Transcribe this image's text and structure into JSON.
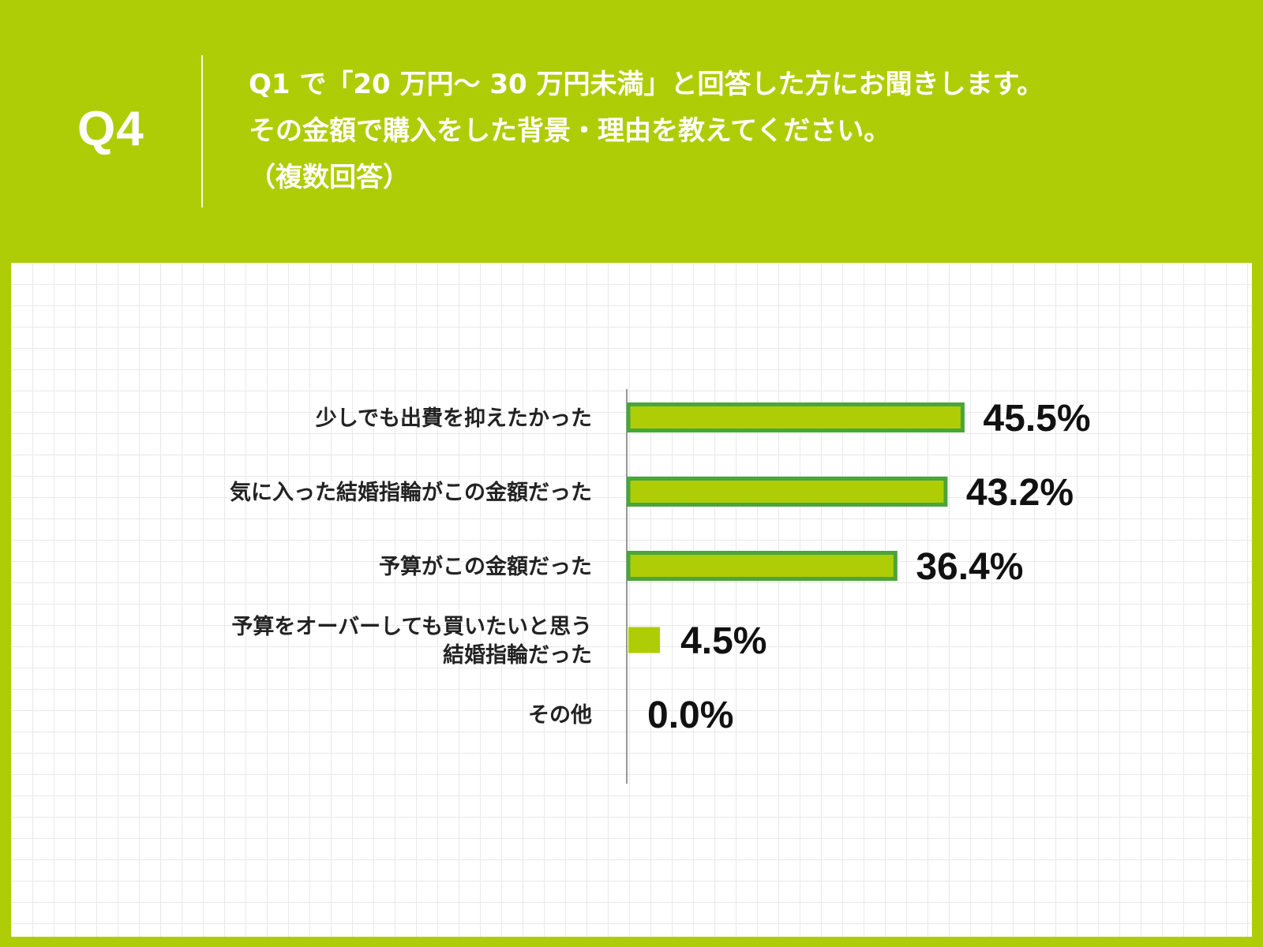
{
  "header": {
    "question_number": "Q4",
    "question_lines": [
      "Q1 で「20 万円〜 30 万円未満」と回答した方にお聞きします。",
      "その金額で購入をした背景・理由を教えてください。",
      "（複数回答）"
    ]
  },
  "colors": {
    "background": "#afcd06",
    "bar_fill": "#afcd06",
    "bar_border": "#4aa53a",
    "axis": "#777777"
  },
  "chart_data": {
    "type": "bar",
    "orientation": "horizontal",
    "categories": [
      [
        "少しでも出費を抑えたかった"
      ],
      [
        "気に入った結婚指輪がこの金額だった"
      ],
      [
        "予算がこの金額だった"
      ],
      [
        "予算をオーバーしても買いたいと思う",
        "結婚指輪だった"
      ],
      [
        "その他"
      ]
    ],
    "values": [
      45.5,
      43.2,
      36.4,
      4.5,
      0.0
    ],
    "value_labels": [
      "45.5%",
      "43.2%",
      "36.4%",
      "4.5%",
      "0.0%"
    ],
    "xlim": [
      0,
      100
    ],
    "unit": "%",
    "grid": false,
    "legend": "none"
  }
}
